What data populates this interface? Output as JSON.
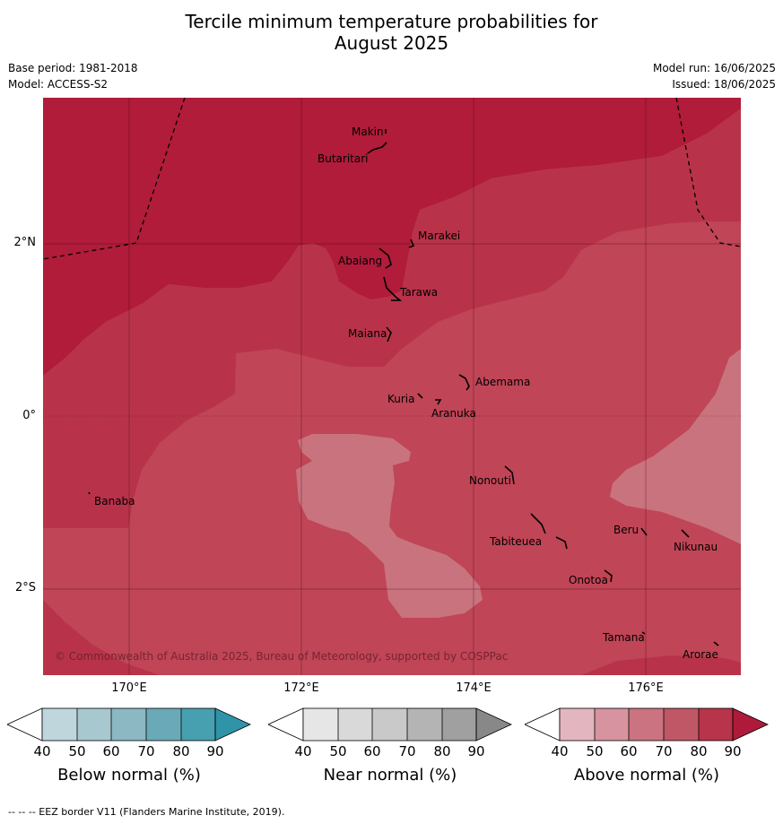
{
  "title_line1": "Tercile minimum temperature probabilities for",
  "title_line2": "August 2025",
  "base_period": "Base period: 1981-2018",
  "model": "Model: ACCESS-S2",
  "model_run": "Model run: 16/06/2025",
  "issued": "Issued: 18/06/2025",
  "copyright": "© Commonwealth of Australia 2025, Bureau of Meteorology, supported by COSPPac",
  "lat_labels": [
    "2°N",
    "0°",
    "2°S"
  ],
  "lon_labels": [
    "170°E",
    "172°E",
    "174°E",
    "176°E"
  ],
  "places": {
    "makin": "Makin",
    "butaritari": "Butaritari",
    "marakei": "Marakei",
    "abaiang": "Abaiang",
    "tarawa": "Tarawa",
    "maiana": "Maiana",
    "abemama": "Abemama",
    "kuria": "Kuria",
    "aranuka": "Aranuka",
    "nonouti": "Nonouti",
    "banaba": "Banaba",
    "beru": "Beru",
    "nikunau": "Nikunau",
    "tabiteuea": "Tabiteuea",
    "onotoa": "Onotoa",
    "tamana": "Tamana",
    "arorae": "Arorae"
  },
  "colorbars": {
    "below": {
      "label": "Below normal (%)",
      "ticks": [
        "40",
        "50",
        "60",
        "70",
        "80",
        "90"
      ],
      "colors": [
        "#ffffff",
        "#bfd6dc",
        "#a7c8cf",
        "#8bb8c3",
        "#6aaab8",
        "#47a0b0",
        "#2f94a8"
      ]
    },
    "near": {
      "label": "Near normal (%)",
      "ticks": [
        "40",
        "50",
        "60",
        "70",
        "80",
        "90"
      ],
      "colors": [
        "#ffffff",
        "#e6e6e6",
        "#d9d9d9",
        "#c9c9c9",
        "#b4b4b4",
        "#a0a0a0",
        "#888888"
      ]
    },
    "above": {
      "label": "Above normal (%)",
      "ticks": [
        "40",
        "50",
        "60",
        "70",
        "80",
        "90"
      ],
      "colors": [
        "#ffffff",
        "#e3b6bf",
        "#d7939f",
        "#cb7380",
        "#c05766",
        "#b7344a",
        "#b01a3a"
      ]
    }
  },
  "footnote": "--  --  -- EEZ border V11 (Flanders Marine Institute, 2019)."
}
